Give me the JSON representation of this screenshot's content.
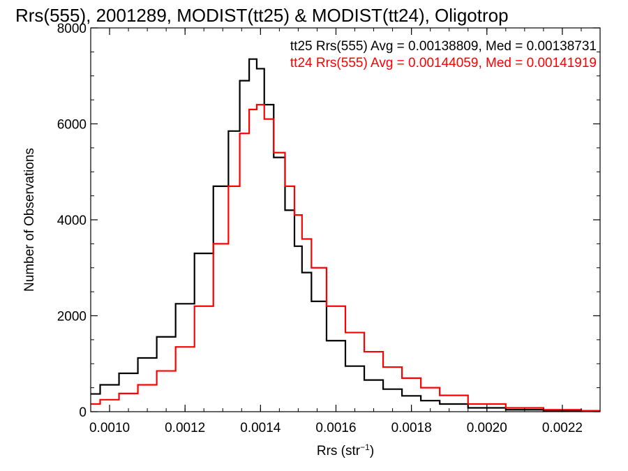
{
  "chart_data": {
    "type": "line",
    "title": "Rrs(555), 2001289, MODIST(tt25) & MODIST(tt24), Oligotrop",
    "xlabel": "Rrs (str",
    "xlabel_sup": "−1",
    "xlabel_close": ")",
    "ylabel": "Number of Observations",
    "xlim": [
      0.00095,
      0.0023
    ],
    "ylim": [
      0,
      8000
    ],
    "x_ticks": [
      0.001,
      0.0012,
      0.0014,
      0.0016,
      0.0018,
      0.002,
      0.0022
    ],
    "x_tick_labels": [
      "0.0010",
      "0.0012",
      "0.0014",
      "0.0016",
      "0.0018",
      "0.0020",
      "0.0022"
    ],
    "y_ticks": [
      0,
      2000,
      4000,
      6000,
      8000
    ],
    "y_tick_labels": [
      "0",
      "2000",
      "4000",
      "6000",
      "8000"
    ],
    "legend": [
      {
        "text": "tt25 Rrs(555) Avg = 0.00138809, Med = 0.00138731",
        "color": "#000000"
      },
      {
        "text": "tt24 Rrs(555) Avg = 0.00144059, Med = 0.00141919",
        "color": "#ff0000"
      }
    ],
    "series": [
      {
        "color": "#000000",
        "x": [
          0.00095,
          0.001,
          0.00105,
          0.0011,
          0.00115,
          0.0012,
          0.00125,
          0.0013,
          0.00133,
          0.00136,
          0.00138,
          0.0014,
          0.00142,
          0.00145,
          0.00148,
          0.0015,
          0.00152,
          0.00155,
          0.0016,
          0.00165,
          0.0017,
          0.00175,
          0.0018,
          0.00185,
          0.0019,
          0.002,
          0.0021,
          0.0022,
          0.0023
        ],
        "values": [
          370,
          560,
          800,
          1120,
          1560,
          2250,
          3300,
          4700,
          5850,
          6900,
          7350,
          7150,
          6400,
          5300,
          4200,
          3450,
          2900,
          2300,
          1480,
          950,
          660,
          470,
          330,
          230,
          160,
          80,
          40,
          20,
          10
        ]
      },
      {
        "color": "#ff0000",
        "x": [
          0.00095,
          0.001,
          0.00105,
          0.0011,
          0.00115,
          0.0012,
          0.00125,
          0.0013,
          0.00133,
          0.00136,
          0.00138,
          0.0014,
          0.00142,
          0.00145,
          0.00148,
          0.0015,
          0.00152,
          0.00155,
          0.0016,
          0.00165,
          0.0017,
          0.00175,
          0.0018,
          0.00185,
          0.0019,
          0.002,
          0.0021,
          0.0022,
          0.0023
        ],
        "values": [
          160,
          250,
          380,
          560,
          850,
          1350,
          2200,
          3500,
          4700,
          5800,
          6300,
          6400,
          6100,
          5400,
          4700,
          4100,
          3600,
          3000,
          2200,
          1650,
          1250,
          930,
          700,
          500,
          340,
          160,
          80,
          40,
          20
        ]
      }
    ]
  }
}
